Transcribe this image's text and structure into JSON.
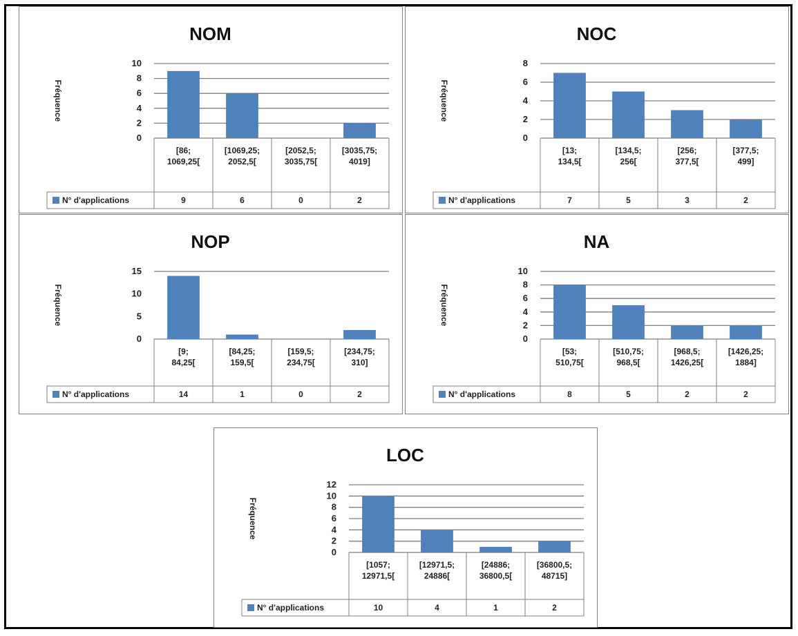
{
  "chart_data": [
    {
      "type": "bar",
      "title": "NOM",
      "ylabel": "Fréquence",
      "ylim": [
        0,
        10
      ],
      "yticks": [
        0,
        2,
        4,
        6,
        8,
        10
      ],
      "categories": [
        "[86; 1069,25[",
        "[1069,25; 2052,5[",
        "[2052,5; 3035,75[",
        "[3035,75; 4019]"
      ],
      "series": [
        {
          "name": "N° d'applications",
          "values": [
            9,
            6,
            0,
            2
          ]
        }
      ],
      "legend": "table-left",
      "grid": true
    },
    {
      "type": "bar",
      "title": "NOC",
      "ylabel": "Fréquence",
      "ylim": [
        0,
        8
      ],
      "yticks": [
        0,
        2,
        4,
        6,
        8
      ],
      "categories": [
        "[13; 134,5[",
        "[134,5; 256[",
        "[256; 377,5[",
        "[377,5; 499]"
      ],
      "series": [
        {
          "name": "N° d'applications",
          "values": [
            7,
            5,
            3,
            2
          ]
        }
      ],
      "legend": "table-left",
      "grid": true
    },
    {
      "type": "bar",
      "title": "NOP",
      "ylabel": "Fréquence",
      "ylim": [
        0,
        15
      ],
      "yticks": [
        0,
        5,
        10,
        15
      ],
      "categories": [
        "[9; 84,25[",
        "[84,25; 159,5[",
        "[159,5; 234,75[",
        "[234,75; 310]"
      ],
      "series": [
        {
          "name": "N° d'applications",
          "values": [
            14,
            1,
            0,
            2
          ]
        }
      ],
      "legend": "table-left",
      "grid": false
    },
    {
      "type": "bar",
      "title": "NA",
      "ylabel": "Fréquence",
      "ylim": [
        0,
        10
      ],
      "yticks": [
        0,
        2,
        4,
        6,
        8,
        10
      ],
      "categories": [
        "[53; 510,75[",
        "[510,75; 968,5[",
        "[968,5; 1426,25[",
        "[1426,25; 1884]"
      ],
      "series": [
        {
          "name": "N° d'applications",
          "values": [
            8,
            5,
            2,
            2
          ]
        }
      ],
      "legend": "table-left",
      "grid": true
    },
    {
      "type": "bar",
      "title": "LOC",
      "ylabel": "Fréquence",
      "ylim": [
        0,
        12
      ],
      "yticks": [
        0,
        2,
        4,
        6,
        8,
        10,
        12
      ],
      "categories": [
        "[1057; 12971,5[",
        "[12971,5; 24886[",
        "[24886; 36800,5[",
        "[36800,5; 48715]"
      ],
      "series": [
        {
          "name": "N° d'applications",
          "values": [
            10,
            4,
            1,
            2
          ]
        }
      ],
      "legend": "table-left",
      "grid": true
    }
  ]
}
